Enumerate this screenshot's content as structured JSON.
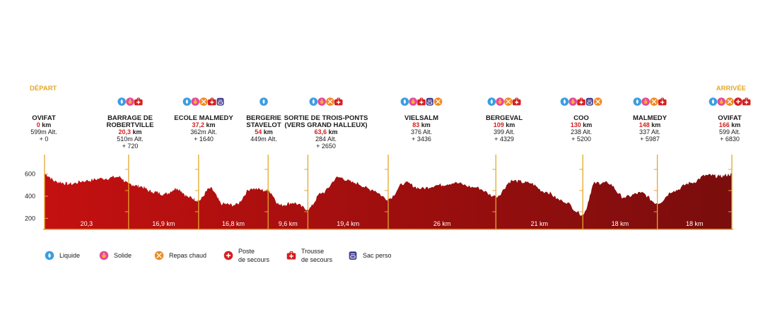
{
  "chart_data": {
    "type": "area",
    "title": "",
    "xlabel": "",
    "ylabel": "",
    "ylim": [
      100,
      700
    ],
    "yticks": [
      200,
      400,
      600
    ],
    "start_label": "DÉPART",
    "end_label": "ARRIVÉE",
    "colors": {
      "fill_start": "#c41010",
      "fill_end": "#7a0d0d",
      "marker": "#e3a82b",
      "accent": "#d42020"
    },
    "stations": [
      {
        "name": [
          "OVIFAT"
        ],
        "km": "0",
        "km_unit": "km",
        "lines": [
          "599m Alt.",
          "+ 0"
        ],
        "services": []
      },
      {
        "name": [
          "BARRAGE DE",
          "ROBERTVILLE"
        ],
        "km": "20,3",
        "km_unit": "km",
        "lines": [
          "510m Alt.",
          "+ 720"
        ],
        "services": [
          "liquide",
          "solide",
          "trousse"
        ]
      },
      {
        "name": [
          "ECOLE MALMEDY"
        ],
        "km": "37,2",
        "km_unit": "km",
        "lines": [
          "362m Alt.",
          "+ 1640"
        ],
        "services": [
          "liquide",
          "solide",
          "repas",
          "trousse",
          "sac"
        ]
      },
      {
        "name": [
          "BERGERIE",
          "STAVELOT"
        ],
        "km": "54",
        "km_unit": "km",
        "lines": [
          "449m Alt."
        ],
        "services": [
          "liquide"
        ]
      },
      {
        "name": [
          "SORTIE DE TROIS-PONTS",
          "(VERS GRAND HALLEUX)"
        ],
        "km": "63,6",
        "km_unit": "km",
        "lines": [
          "284 Alt.",
          "+ 2650"
        ],
        "services": [
          "liquide",
          "solide",
          "repas",
          "trousse"
        ]
      },
      {
        "name": [
          "VIELSALM"
        ],
        "km": "83",
        "km_unit": "km",
        "lines": [
          "376 Alt.",
          "+ 3436"
        ],
        "services": [
          "liquide",
          "solide",
          "trousse",
          "sac",
          "repas"
        ]
      },
      {
        "name": [
          "BERGEVAL"
        ],
        "km": "109",
        "km_unit": "km",
        "lines": [
          "399 Alt.",
          "+ 4329"
        ],
        "services": [
          "liquide",
          "solide",
          "repas",
          "trousse"
        ]
      },
      {
        "name": [
          "COO"
        ],
        "km": "130",
        "km_unit": "km",
        "lines": [
          "238 Alt.",
          "+ 5200"
        ],
        "services": [
          "liquide",
          "solide",
          "trousse",
          "sac",
          "repas"
        ]
      },
      {
        "name": [
          "MALMEDY"
        ],
        "km": "148",
        "km_unit": "km",
        "lines": [
          "337 Alt.",
          "+ 5987"
        ],
        "services": [
          "liquide",
          "solide",
          "repas",
          "trousse"
        ]
      },
      {
        "name": [
          "OVIFAT"
        ],
        "km": "166",
        "km_unit": "km",
        "lines": [
          "599 Alt.",
          "+ 6830"
        ],
        "services": [
          "liquide",
          "solide",
          "repas",
          "poste",
          "trousse"
        ]
      }
    ],
    "segments": [
      "20,3",
      "16,9 km",
      "16,8 km",
      "9,6 km",
      "19,4 km",
      "26 km",
      "21 km",
      "18 km",
      "18 km"
    ],
    "x": [
      0,
      3,
      6,
      10,
      14,
      18,
      20.3,
      23,
      26,
      29,
      32,
      35,
      37.2,
      40,
      43,
      46,
      50,
      54,
      57,
      60,
      63.6,
      67,
      71,
      75,
      79,
      83,
      87,
      91,
      95,
      99,
      104,
      109,
      113,
      117,
      121,
      125,
      130,
      133,
      136,
      140,
      144,
      148,
      152,
      156,
      160,
      163,
      166
    ],
    "y": [
      599,
      530,
      510,
      540,
      560,
      575,
      510,
      490,
      440,
      420,
      470,
      390,
      362,
      470,
      330,
      320,
      470,
      449,
      320,
      340,
      284,
      430,
      570,
      520,
      460,
      376,
      520,
      470,
      500,
      520,
      480,
      399,
      540,
      520,
      440,
      360,
      238,
      520,
      520,
      390,
      430,
      337,
      450,
      520,
      590,
      580,
      599
    ]
  },
  "legend": [
    {
      "icon": "liquide",
      "lines": [
        "Liquide"
      ]
    },
    {
      "icon": "solide",
      "lines": [
        "Solide"
      ]
    },
    {
      "icon": "repas",
      "lines": [
        "Repas chaud"
      ]
    },
    {
      "icon": "poste",
      "lines": [
        "Poste",
        "de secours"
      ]
    },
    {
      "icon": "trousse",
      "lines": [
        "Trousse",
        "de secours"
      ]
    },
    {
      "icon": "sac",
      "lines": [
        "Sac perso"
      ]
    }
  ]
}
